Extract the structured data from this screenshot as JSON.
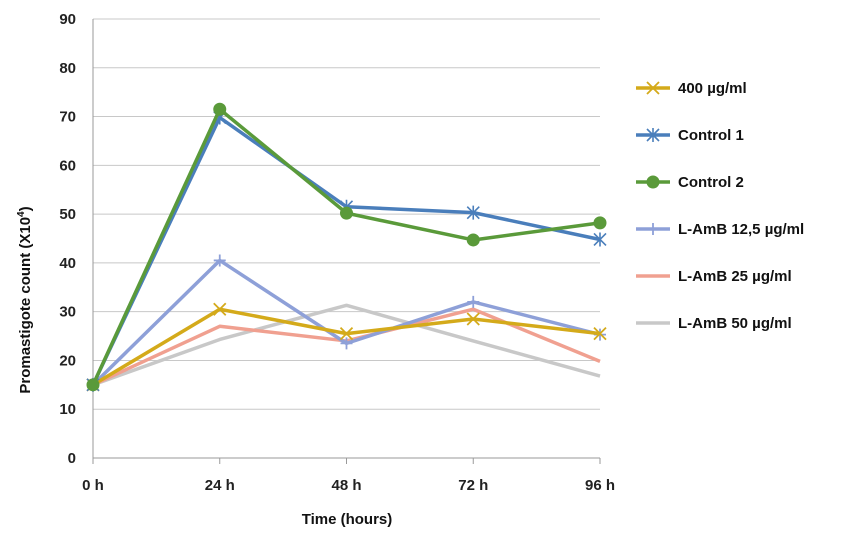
{
  "chart_data": {
    "type": "line",
    "title": "",
    "xlabel": "Time (hours)",
    "ylabel_parts": {
      "main": "Promastigote count (X10",
      "sup": "4",
      "end": ")"
    },
    "categories": [
      "0 h",
      "24 h",
      "48 h",
      "72 h",
      "96 h"
    ],
    "ylim": [
      0,
      90
    ],
    "yticks": [
      "0",
      "10",
      "20",
      "30",
      "40",
      "50",
      "60",
      "70",
      "80",
      "90"
    ],
    "grid": true,
    "legend_position": "right",
    "series": [
      {
        "name": "400 µg/ml",
        "color": "#d4aa1a",
        "marker": "x",
        "values": [
          15,
          30.5,
          25.5,
          28.5,
          25.5
        ]
      },
      {
        "name": "Control 1",
        "color": "#4a7ebb",
        "marker": "asterisk",
        "values": [
          15,
          69.8,
          51.5,
          50.3,
          44.8
        ]
      },
      {
        "name": "Control 2",
        "color": "#5a9a3a",
        "marker": "circle",
        "values": [
          15,
          71.5,
          50.2,
          44.7,
          48.2
        ]
      },
      {
        "name": "L-AmB 12,5 µg/ml",
        "color": "#8ea0d8",
        "marker": "plus",
        "values": [
          15,
          40.5,
          23.5,
          32,
          25.3
        ]
      },
      {
        "name": "L-AmB 25 µg/ml",
        "color": "#f0a090",
        "marker": "none",
        "values": [
          15,
          27,
          24,
          30.5,
          19.8
        ]
      },
      {
        "name": "L-AmB 50 µg/ml",
        "color": "#c8c8c8",
        "marker": "none",
        "values": [
          15,
          24.3,
          31.3,
          24,
          16.8
        ]
      }
    ]
  }
}
